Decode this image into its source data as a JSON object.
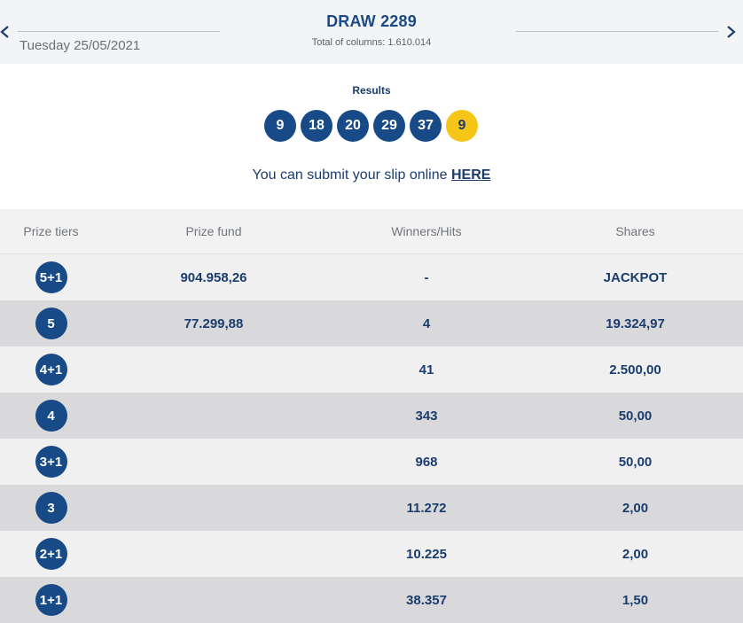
{
  "header": {
    "date": "Tuesday 25/05/2021",
    "draw_title": "DRAW 2289",
    "total_columns": "Total of columns: 1.610.014"
  },
  "results": {
    "label": "Results",
    "numbers": [
      "9",
      "18",
      "20",
      "29",
      "37"
    ],
    "bonus": "9"
  },
  "slip": {
    "text": "You can submit your slip online ",
    "link": "HERE"
  },
  "table": {
    "headers": [
      "Prize tiers",
      "Prize fund",
      "Winners/Hits",
      "Shares"
    ],
    "rows": [
      {
        "tier": "5+1",
        "fund": "904.958,26",
        "winners": "-",
        "shares": "JACKPOT"
      },
      {
        "tier": "5",
        "fund": "77.299,88",
        "winners": "4",
        "shares": "19.324,97"
      },
      {
        "tier": "4+1",
        "fund": "",
        "winners": "41",
        "shares": "2.500,00"
      },
      {
        "tier": "4",
        "fund": "",
        "winners": "343",
        "shares": "50,00"
      },
      {
        "tier": "3+1",
        "fund": "",
        "winners": "968",
        "shares": "50,00"
      },
      {
        "tier": "3",
        "fund": "",
        "winners": "11.272",
        "shares": "2,00"
      },
      {
        "tier": "2+1",
        "fund": "",
        "winners": "10.225",
        "shares": "2,00"
      },
      {
        "tier": "1+1",
        "fund": "",
        "winners": "38.357",
        "shares": "1,50"
      }
    ]
  },
  "colors": {
    "primary": "#174a86",
    "bonus": "#f5c518",
    "row_light": "#f0f0f1",
    "row_dark": "#d9d9db"
  }
}
